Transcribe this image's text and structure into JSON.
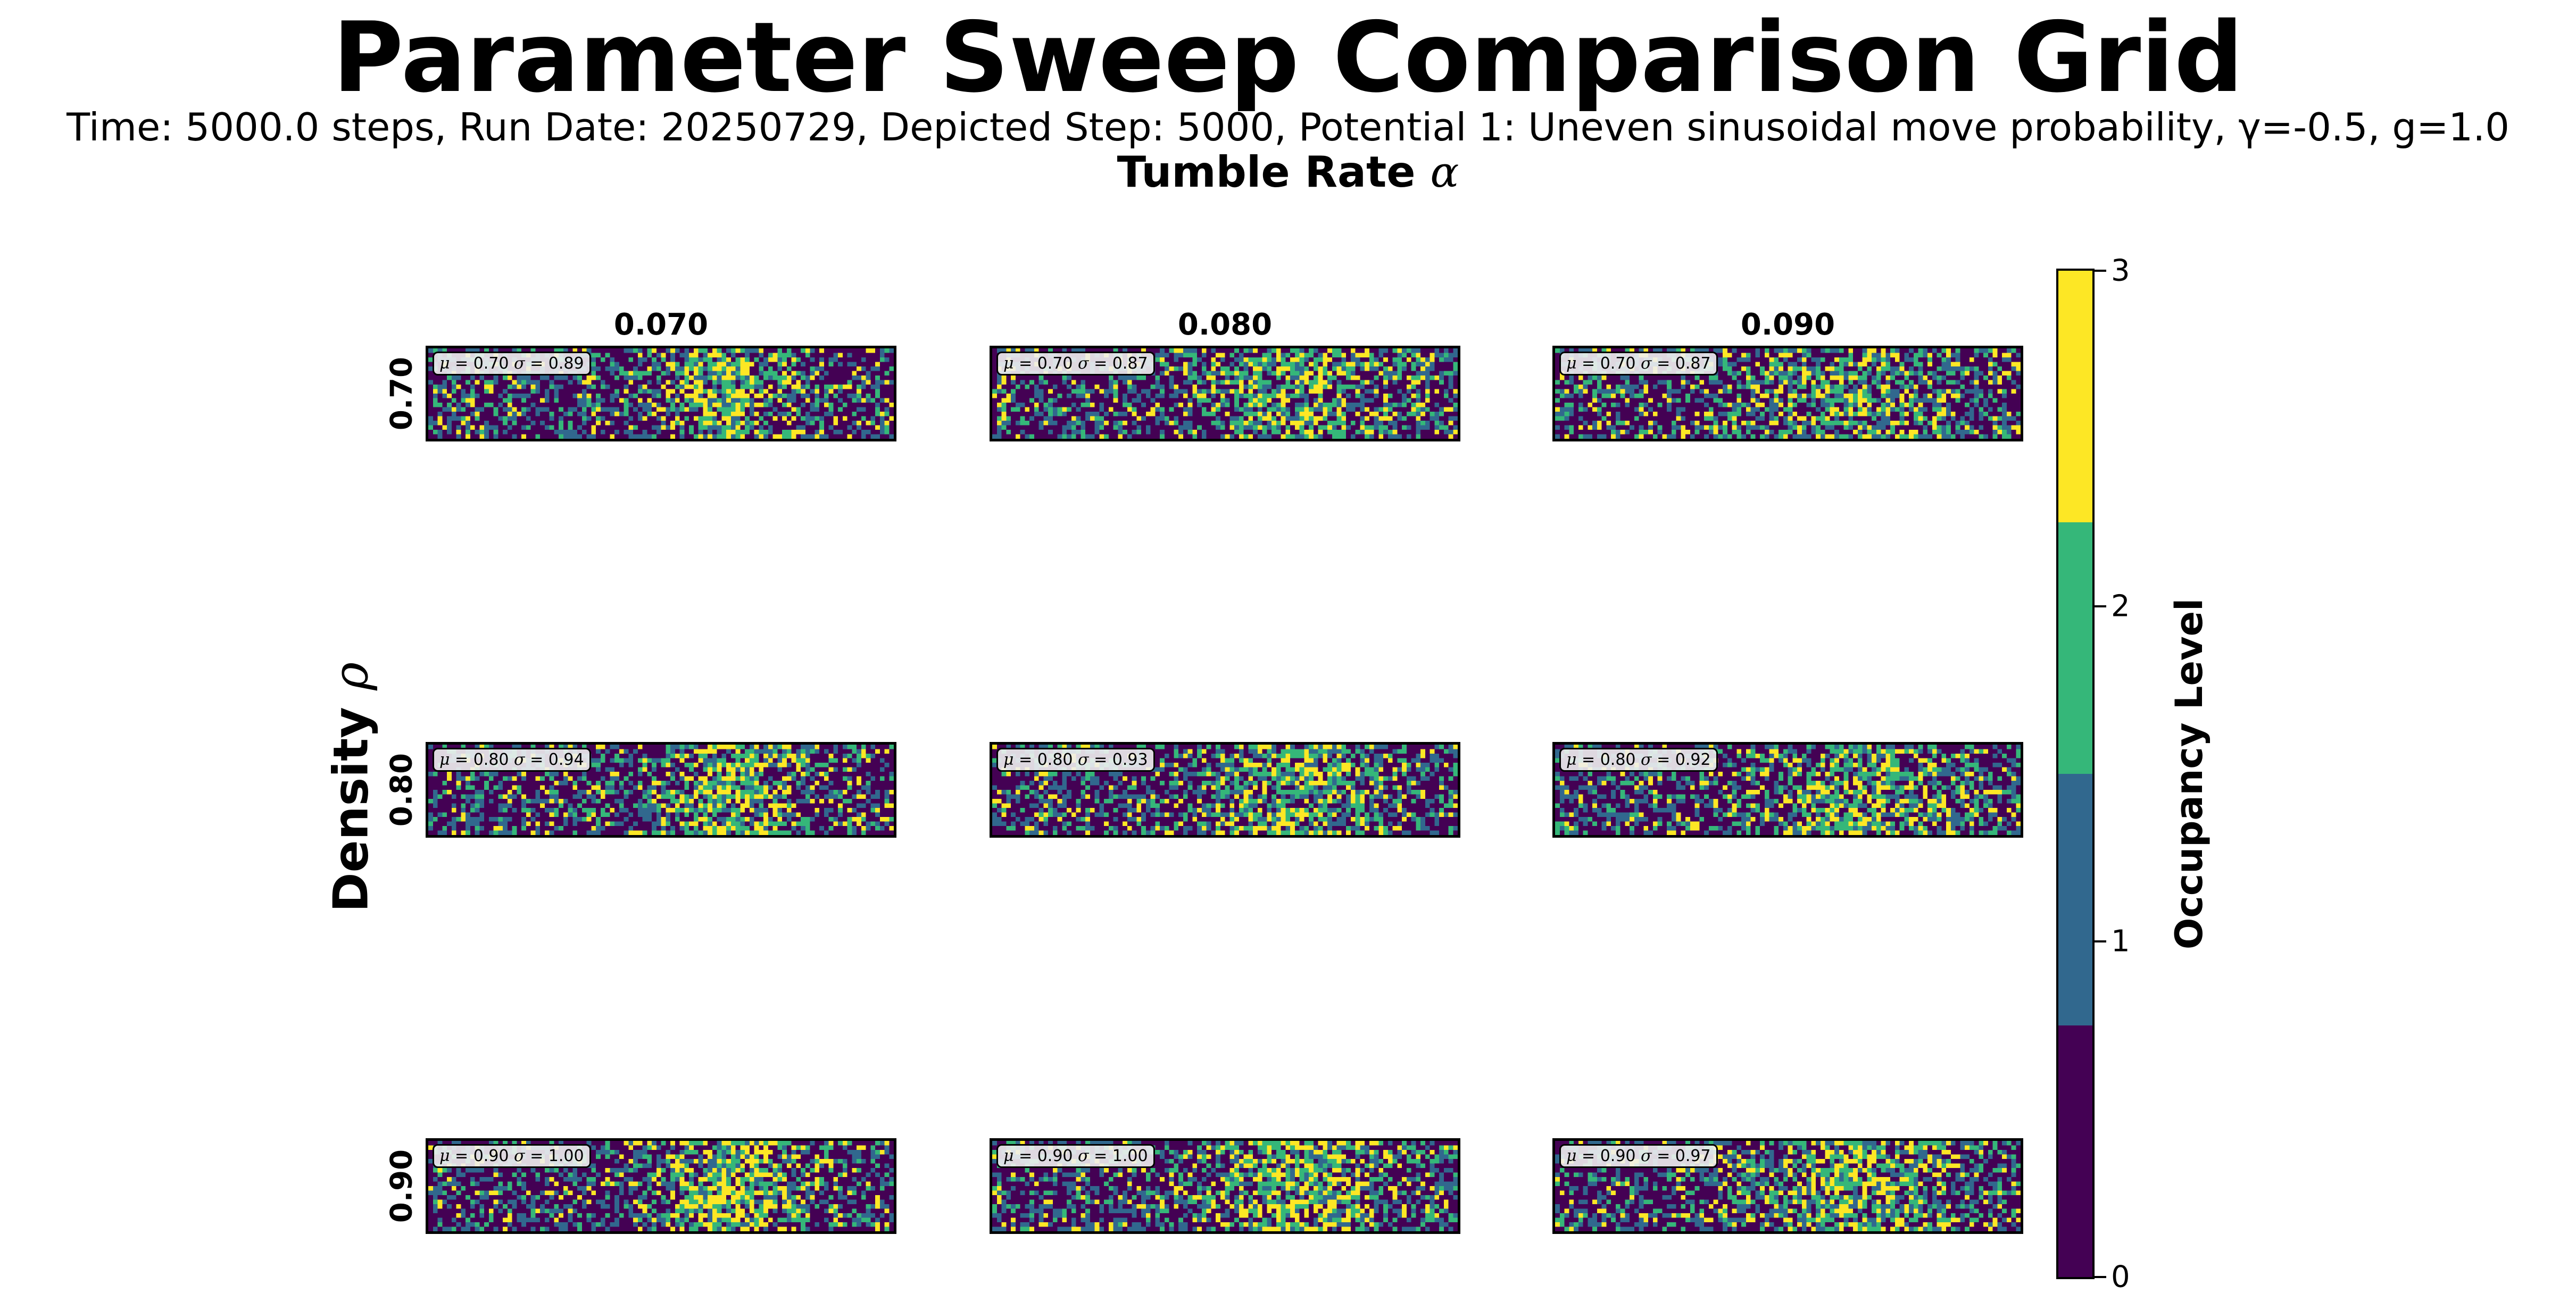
{
  "title": "Parameter Sweep Comparison Grid",
  "subtitle": "Time: 5000.0 steps, Run Date: 20250729, Depicted Step: 5000, Potential 1: Uneven sinusoidal move probability, γ=-0.5, g=1.0",
  "x_super": {
    "text": "Tumble Rate ",
    "symbol": "α"
  },
  "y_super": {
    "text": "Density ",
    "symbol": "ρ"
  },
  "chart_data": {
    "type": "heatmap",
    "layout": "3x3 grid of lattice occupancy snapshots",
    "column_param": "Tumble Rate α",
    "row_param": "Density ρ",
    "columns": [
      "0.070",
      "0.080",
      "0.090"
    ],
    "rows": [
      "0.70",
      "0.80",
      "0.90"
    ],
    "stats": [
      [
        {
          "mu": "0.70",
          "sigma": "0.89"
        },
        {
          "mu": "0.70",
          "sigma": "0.87"
        },
        {
          "mu": "0.70",
          "sigma": "0.87"
        }
      ],
      [
        {
          "mu": "0.80",
          "sigma": "0.94"
        },
        {
          "mu": "0.80",
          "sigma": "0.93"
        },
        {
          "mu": "0.80",
          "sigma": "0.92"
        }
      ],
      [
        {
          "mu": "0.90",
          "sigma": "1.00"
        },
        {
          "mu": "0.90",
          "sigma": "1.00"
        },
        {
          "mu": "0.90",
          "sigma": "0.97"
        }
      ]
    ],
    "lattice": {
      "columns": 100,
      "rows": 20,
      "cluster_center_fraction": 0.65
    },
    "colorbar": {
      "label": "Occupancy Level",
      "levels": [
        0,
        1,
        2,
        3
      ],
      "tick_labels": [
        "0",
        "1",
        "2",
        "3"
      ],
      "colors": [
        "#440154",
        "#31688e",
        "#35b779",
        "#fde725"
      ],
      "range": [
        0,
        3
      ]
    }
  }
}
